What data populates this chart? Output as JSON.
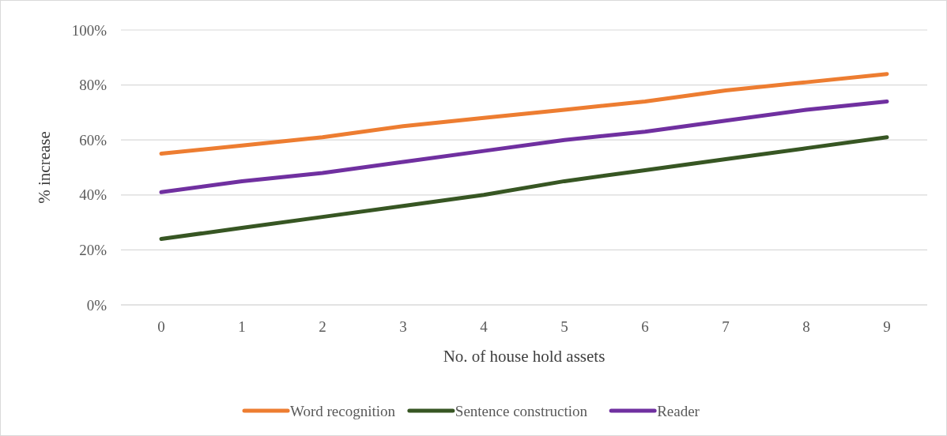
{
  "chart_data": {
    "type": "line",
    "xlabel": "No. of house hold assets",
    "ylabel": "% increase",
    "categories": [
      "0",
      "1",
      "2",
      "3",
      "4",
      "5",
      "6",
      "7",
      "8",
      "9"
    ],
    "ylim": [
      0,
      100
    ],
    "yticks": [
      {
        "value": 0,
        "label": "0%"
      },
      {
        "value": 20,
        "label": "20%"
      },
      {
        "value": 40,
        "label": "40%"
      },
      {
        "value": 60,
        "label": "60%"
      },
      {
        "value": 80,
        "label": "80%"
      },
      {
        "value": 100,
        "label": "100%"
      }
    ],
    "grid": "y",
    "legend": "bottom",
    "marker": "none",
    "line_style": "solid",
    "series": [
      {
        "name": "Word recognition",
        "color": "#ed7d31",
        "values": [
          55,
          58,
          61,
          65,
          68,
          71,
          74,
          78,
          81,
          84
        ]
      },
      {
        "name": "Sentence construction",
        "color": "#375623",
        "values": [
          24,
          28,
          32,
          36,
          40,
          45,
          49,
          53,
          57,
          61
        ]
      },
      {
        "name": "Reader",
        "color": "#7030a0",
        "values": [
          41,
          45,
          48,
          52,
          56,
          60,
          63,
          67,
          71,
          74
        ]
      }
    ]
  }
}
